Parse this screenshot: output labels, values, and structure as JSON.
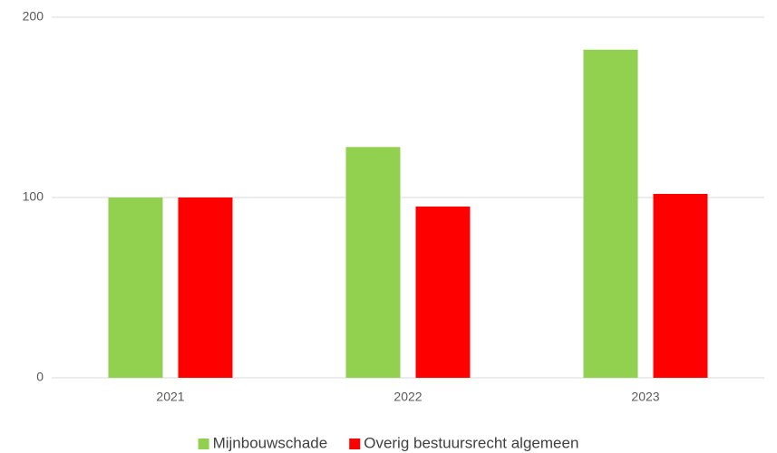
{
  "chart_data": {
    "type": "bar",
    "categories": [
      "2021",
      "2022",
      "2023"
    ],
    "series": [
      {
        "name": "Mijnbouwschade",
        "color": "#92d050",
        "values": [
          100,
          128,
          182
        ]
      },
      {
        "name": "Overig bestuursrecht algemeen",
        "color": "#ff0000",
        "values": [
          100,
          95,
          102
        ]
      }
    ],
    "ylim": [
      0,
      200
    ],
    "yticks": [
      0,
      100,
      200
    ],
    "grid": true,
    "legend": "bottom"
  }
}
